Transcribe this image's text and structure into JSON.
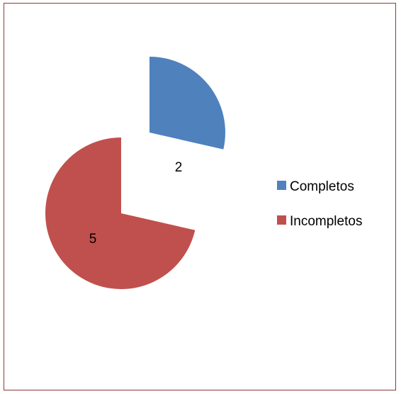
{
  "chart_data": {
    "type": "pie",
    "categories": [
      "Completos",
      "Incompletos"
    ],
    "values": [
      2,
      5
    ],
    "colors": [
      "#4f81bd",
      "#c0504d"
    ],
    "data_labels": [
      "2",
      "5"
    ],
    "exploded": true,
    "legend": "right"
  }
}
